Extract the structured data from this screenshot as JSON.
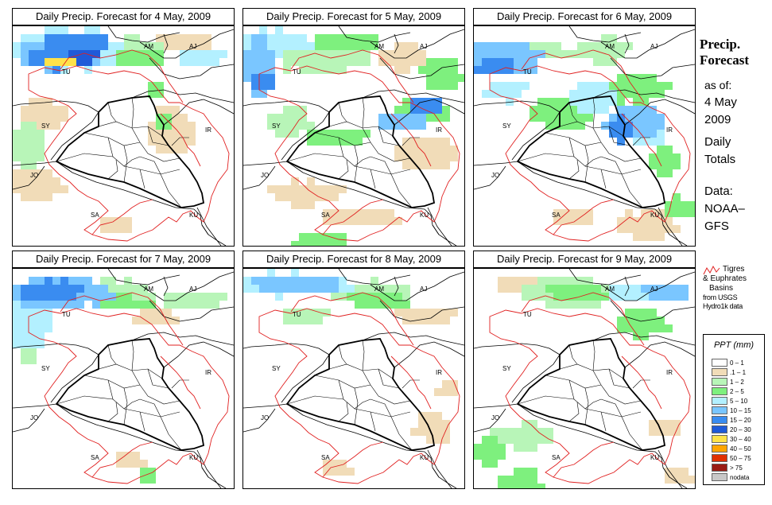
{
  "panels": [
    {
      "title": "Daily Precip. Forecast for  4 May, 2009",
      "key": "d1"
    },
    {
      "title": "Daily Precip. Forecast for  5 May, 2009",
      "key": "d2"
    },
    {
      "title": "Daily Precip. Forecast for  6 May, 2009",
      "key": "d3"
    },
    {
      "title": "Daily Precip. Forecast for  7 May, 2009",
      "key": "d4"
    },
    {
      "title": "Daily Precip. Forecast for  8 May, 2009",
      "key": "d5"
    },
    {
      "title": "Daily Precip. Forecast for  9 May, 2009",
      "key": "d6"
    }
  ],
  "map_labels": [
    "AM",
    "AJ",
    "TU",
    "SY",
    "IR",
    "JO",
    "SA",
    "KU"
  ],
  "side": {
    "heading_line1": "Precip.",
    "heading_line2": "Forecast",
    "asof_line1": "as of:",
    "asof_line2": "4 May",
    "asof_line3": "2009",
    "totals_line1": "Daily",
    "totals_line2": "Totals",
    "data_line1": "Data:",
    "data_line2": "NOAA–",
    "data_line3": "GFS"
  },
  "basin_note": {
    "line1": "Tigres",
    "line2": "& Euphrates",
    "line3": "Basins",
    "line4": "from USGS",
    "line5": "Hydro1k data",
    "line_color": "#e02020"
  },
  "legend": {
    "title": "PPT (mm)",
    "items": [
      {
        "label": "0 – 1",
        "color": "#ffffff"
      },
      {
        "label": ".1 – 1",
        "color": "#f1dcb8"
      },
      {
        "label": "1 – 2",
        "color": "#b8f5b8"
      },
      {
        "label": "2 – 5",
        "color": "#7ef07e"
      },
      {
        "label": "5 – 10",
        "color": "#b3f0ff"
      },
      {
        "label": "10 – 15",
        "color": "#7ac6ff"
      },
      {
        "label": "15 – 20",
        "color": "#3a8cf0"
      },
      {
        "label": "20 – 30",
        "color": "#1f5ad8"
      },
      {
        "label": "30 – 40",
        "color": "#ffe24a"
      },
      {
        "label": "40 – 50",
        "color": "#ffa500"
      },
      {
        "label": "50 – 75",
        "color": "#e03000"
      },
      {
        "label": "> 75",
        "color": "#9a1c14"
      },
      {
        "label": "nodata",
        "color": "#c8c8c8"
      }
    ]
  }
}
